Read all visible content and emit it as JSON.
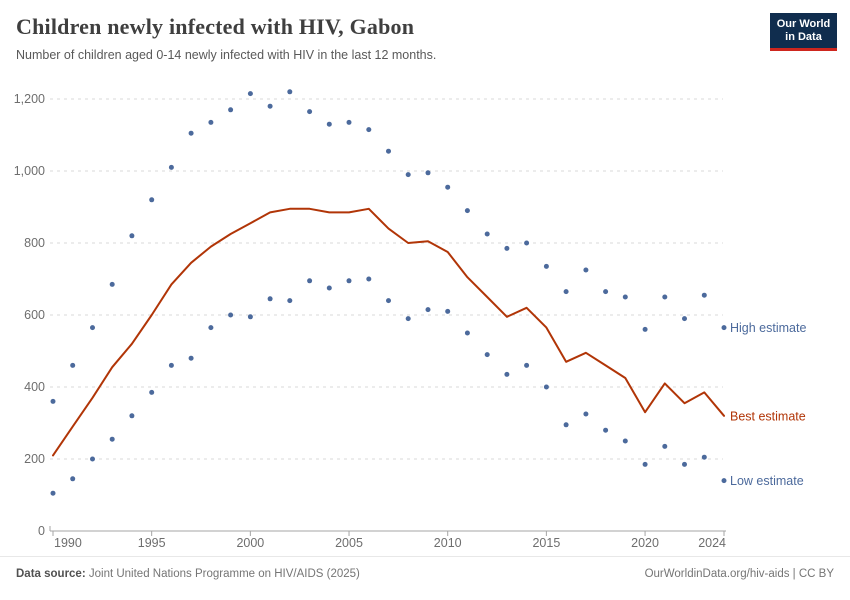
{
  "header": {
    "title": "Children newly infected with HIV, Gabon",
    "subtitle": "Number of children aged 0-14 newly infected with HIV in the last 12 months.",
    "logo": {
      "line1": "Our World",
      "line2": "in Data"
    }
  },
  "footer": {
    "datasource_label": "Data source:",
    "datasource_value": " Joint United Nations Programme on HIV/AIDS (2025)",
    "attribution": "OurWorldinData.org/hiv-aids | CC BY"
  },
  "colors": {
    "best_estimate_red": "#B13507",
    "estimate_blue": "#4C6A9C",
    "grid": "#d9d9d9",
    "axis": "#a5a5a5",
    "tick_text": "#6e6e6e",
    "logo_navy": "#102d4e",
    "logo_red_bar": "#ce261e"
  },
  "chart_data": {
    "type": "line",
    "title": "Children newly infected with HIV, Gabon",
    "subtitle": "Number of children aged 0-14 newly infected with HIV in the last 12 months.",
    "xlabel": "",
    "ylabel": "",
    "x": [
      1990,
      1991,
      1992,
      1993,
      1994,
      1995,
      1996,
      1997,
      1998,
      1999,
      2000,
      2001,
      2002,
      2003,
      2004,
      2005,
      2006,
      2007,
      2008,
      2009,
      2010,
      2011,
      2012,
      2013,
      2014,
      2015,
      2016,
      2017,
      2018,
      2019,
      2020,
      2021,
      2022,
      2023,
      2024
    ],
    "series": [
      {
        "name": "High estimate",
        "style": "scatter",
        "color": "#4C6A9C",
        "values": [
          360,
          460,
          565,
          685,
          820,
          920,
          1010,
          1105,
          1135,
          1170,
          1215,
          1180,
          1220,
          1165,
          1130,
          1135,
          1115,
          1055,
          990,
          995,
          955,
          890,
          825,
          785,
          800,
          735,
          665,
          725,
          665,
          650,
          560,
          650,
          590,
          655,
          565
        ]
      },
      {
        "name": "Best estimate",
        "style": "line",
        "color": "#B13507",
        "values": [
          210,
          290,
          370,
          455,
          520,
          600,
          685,
          745,
          790,
          825,
          855,
          885,
          895,
          895,
          885,
          885,
          895,
          840,
          800,
          805,
          775,
          705,
          650,
          595,
          620,
          565,
          470,
          495,
          460,
          425,
          330,
          410,
          355,
          385,
          320
        ]
      },
      {
        "name": "Low estimate",
        "style": "scatter",
        "color": "#4C6A9C",
        "values": [
          105,
          145,
          200,
          255,
          320,
          385,
          460,
          480,
          565,
          600,
          595,
          645,
          640,
          695,
          675,
          695,
          700,
          640,
          590,
          615,
          610,
          550,
          490,
          435,
          460,
          400,
          295,
          325,
          280,
          250,
          185,
          235,
          185,
          205,
          140
        ]
      }
    ],
    "xticks": [
      1990,
      1995,
      2000,
      2005,
      2010,
      2015,
      2020,
      2024
    ],
    "yticks": [
      0,
      200,
      400,
      600,
      800,
      1000,
      1200
    ],
    "xlim": [
      1990,
      2024
    ],
    "ylim": [
      0,
      1260
    ],
    "grid": "horizontal-dashed",
    "legend_position": "labels-at-line-ends-right"
  }
}
